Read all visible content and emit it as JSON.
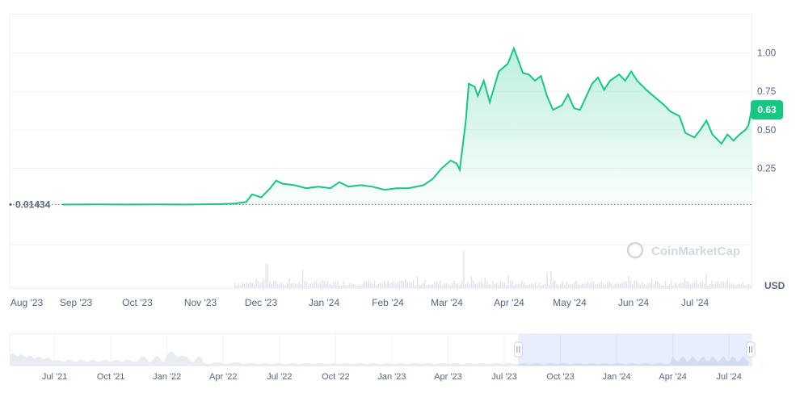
{
  "chart_data": {
    "type": "area",
    "watermark": "CoinMarketCap",
    "main": {
      "currency": "USD",
      "current_price_label": "0.63",
      "baseline_label": "0.01434",
      "baseline_value": 0.01434,
      "y_ticks": [
        {
          "label": "1.00",
          "value": 1.0
        },
        {
          "label": "0.75",
          "value": 0.75
        },
        {
          "label": "0.50",
          "value": 0.5
        },
        {
          "label": "0.25",
          "value": 0.25
        }
      ],
      "x_ticks": [
        {
          "label": "Aug '23",
          "t": 0
        },
        {
          "label": "Sep '23",
          "t": 1
        },
        {
          "label": "Oct '23",
          "t": 2
        },
        {
          "label": "Nov '23",
          "t": 3
        },
        {
          "label": "Dec '23",
          "t": 4
        },
        {
          "label": "Jan '24",
          "t": 5
        },
        {
          "label": "Feb '24",
          "t": 6
        },
        {
          "label": "Mar '24",
          "t": 7
        },
        {
          "label": "Apr '24",
          "t": 8
        },
        {
          "label": "May '24",
          "t": 9
        },
        {
          "label": "Jun '24",
          "t": 10
        },
        {
          "label": "Jul '24",
          "t": 11
        }
      ],
      "ylim": [
        -0.53,
        1.25
      ],
      "xlim": [
        0,
        11.9
      ],
      "colors": {
        "up": "#16c784",
        "down": "#ea3943"
      },
      "series": [
        {
          "t": 0.45,
          "v": 0.014
        },
        {
          "t": 1.0,
          "v": 0.015
        },
        {
          "t": 1.5,
          "v": 0.014
        },
        {
          "t": 2.0,
          "v": 0.015
        },
        {
          "t": 2.5,
          "v": 0.014
        },
        {
          "t": 3.0,
          "v": 0.016
        },
        {
          "t": 3.3,
          "v": 0.02
        },
        {
          "t": 3.5,
          "v": 0.03
        },
        {
          "t": 3.6,
          "v": 0.08
        },
        {
          "t": 3.75,
          "v": 0.06
        },
        {
          "t": 3.9,
          "v": 0.12
        },
        {
          "t": 4.0,
          "v": 0.17
        },
        {
          "t": 4.1,
          "v": 0.15
        },
        {
          "t": 4.3,
          "v": 0.14
        },
        {
          "t": 4.5,
          "v": 0.12
        },
        {
          "t": 4.7,
          "v": 0.13
        },
        {
          "t": 4.9,
          "v": 0.12
        },
        {
          "t": 5.05,
          "v": 0.16
        },
        {
          "t": 5.2,
          "v": 0.13
        },
        {
          "t": 5.4,
          "v": 0.14
        },
        {
          "t": 5.6,
          "v": 0.13
        },
        {
          "t": 5.8,
          "v": 0.11
        },
        {
          "t": 6.0,
          "v": 0.12
        },
        {
          "t": 6.2,
          "v": 0.12
        },
        {
          "t": 6.45,
          "v": 0.14
        },
        {
          "t": 6.6,
          "v": 0.18
        },
        {
          "t": 6.75,
          "v": 0.25
        },
        {
          "t": 6.9,
          "v": 0.3
        },
        {
          "t": 7.0,
          "v": 0.28
        },
        {
          "t": 7.05,
          "v": 0.24
        },
        {
          "t": 7.15,
          "v": 0.55
        },
        {
          "t": 7.2,
          "v": 0.8
        },
        {
          "t": 7.3,
          "v": 0.78
        },
        {
          "t": 7.35,
          "v": 0.72
        },
        {
          "t": 7.45,
          "v": 0.82
        },
        {
          "t": 7.55,
          "v": 0.68
        },
        {
          "t": 7.7,
          "v": 0.88
        },
        {
          "t": 7.85,
          "v": 0.93
        },
        {
          "t": 7.95,
          "v": 1.03
        },
        {
          "t": 8.1,
          "v": 0.87
        },
        {
          "t": 8.2,
          "v": 0.86
        },
        {
          "t": 8.3,
          "v": 0.82
        },
        {
          "t": 8.4,
          "v": 0.85
        },
        {
          "t": 8.5,
          "v": 0.72
        },
        {
          "t": 8.6,
          "v": 0.63
        },
        {
          "t": 8.75,
          "v": 0.66
        },
        {
          "t": 8.85,
          "v": 0.73
        },
        {
          "t": 8.95,
          "v": 0.64
        },
        {
          "t": 9.05,
          "v": 0.63
        },
        {
          "t": 9.25,
          "v": 0.8
        },
        {
          "t": 9.35,
          "v": 0.84
        },
        {
          "t": 9.45,
          "v": 0.76
        },
        {
          "t": 9.55,
          "v": 0.82
        },
        {
          "t": 9.7,
          "v": 0.86
        },
        {
          "t": 9.8,
          "v": 0.82
        },
        {
          "t": 9.9,
          "v": 0.88
        },
        {
          "t": 10.0,
          "v": 0.82
        },
        {
          "t": 10.15,
          "v": 0.76
        },
        {
          "t": 10.3,
          "v": 0.71
        },
        {
          "t": 10.45,
          "v": 0.66
        },
        {
          "t": 10.55,
          "v": 0.62
        },
        {
          "t": 10.7,
          "v": 0.59
        },
        {
          "t": 10.8,
          "v": 0.48
        },
        {
          "t": 10.95,
          "v": 0.45
        },
        {
          "t": 11.05,
          "v": 0.5
        },
        {
          "t": 11.15,
          "v": 0.56
        },
        {
          "t": 11.25,
          "v": 0.47
        },
        {
          "t": 11.4,
          "v": 0.41
        },
        {
          "t": 11.5,
          "v": 0.47
        },
        {
          "t": 11.6,
          "v": 0.43
        },
        {
          "t": 11.7,
          "v": 0.47
        },
        {
          "t": 11.8,
          "v": 0.5
        },
        {
          "t": 11.85,
          "v": 0.53
        },
        {
          "t": 11.9,
          "v": 0.63
        }
      ]
    },
    "navigator": {
      "x_ticks": [
        {
          "label": "Jul '21",
          "t": 0
        },
        {
          "label": "Oct '21",
          "t": 1
        },
        {
          "label": "Jan '22",
          "t": 2
        },
        {
          "label": "Apr '22",
          "t": 3
        },
        {
          "label": "Jul '22",
          "t": 4
        },
        {
          "label": "Oct '22",
          "t": 5
        },
        {
          "label": "Jan '23",
          "t": 6
        },
        {
          "label": "Apr '23",
          "t": 7
        },
        {
          "label": "Jul '23",
          "t": 8
        },
        {
          "label": "Oct '23",
          "t": 9
        },
        {
          "label": "Jan '24",
          "t": 10
        },
        {
          "label": "Apr '24",
          "t": 11
        },
        {
          "label": "Jul '24",
          "t": 12
        }
      ],
      "xlim": [
        -0.8,
        12.4
      ],
      "selection": [
        8.25,
        12.4
      ]
    }
  }
}
